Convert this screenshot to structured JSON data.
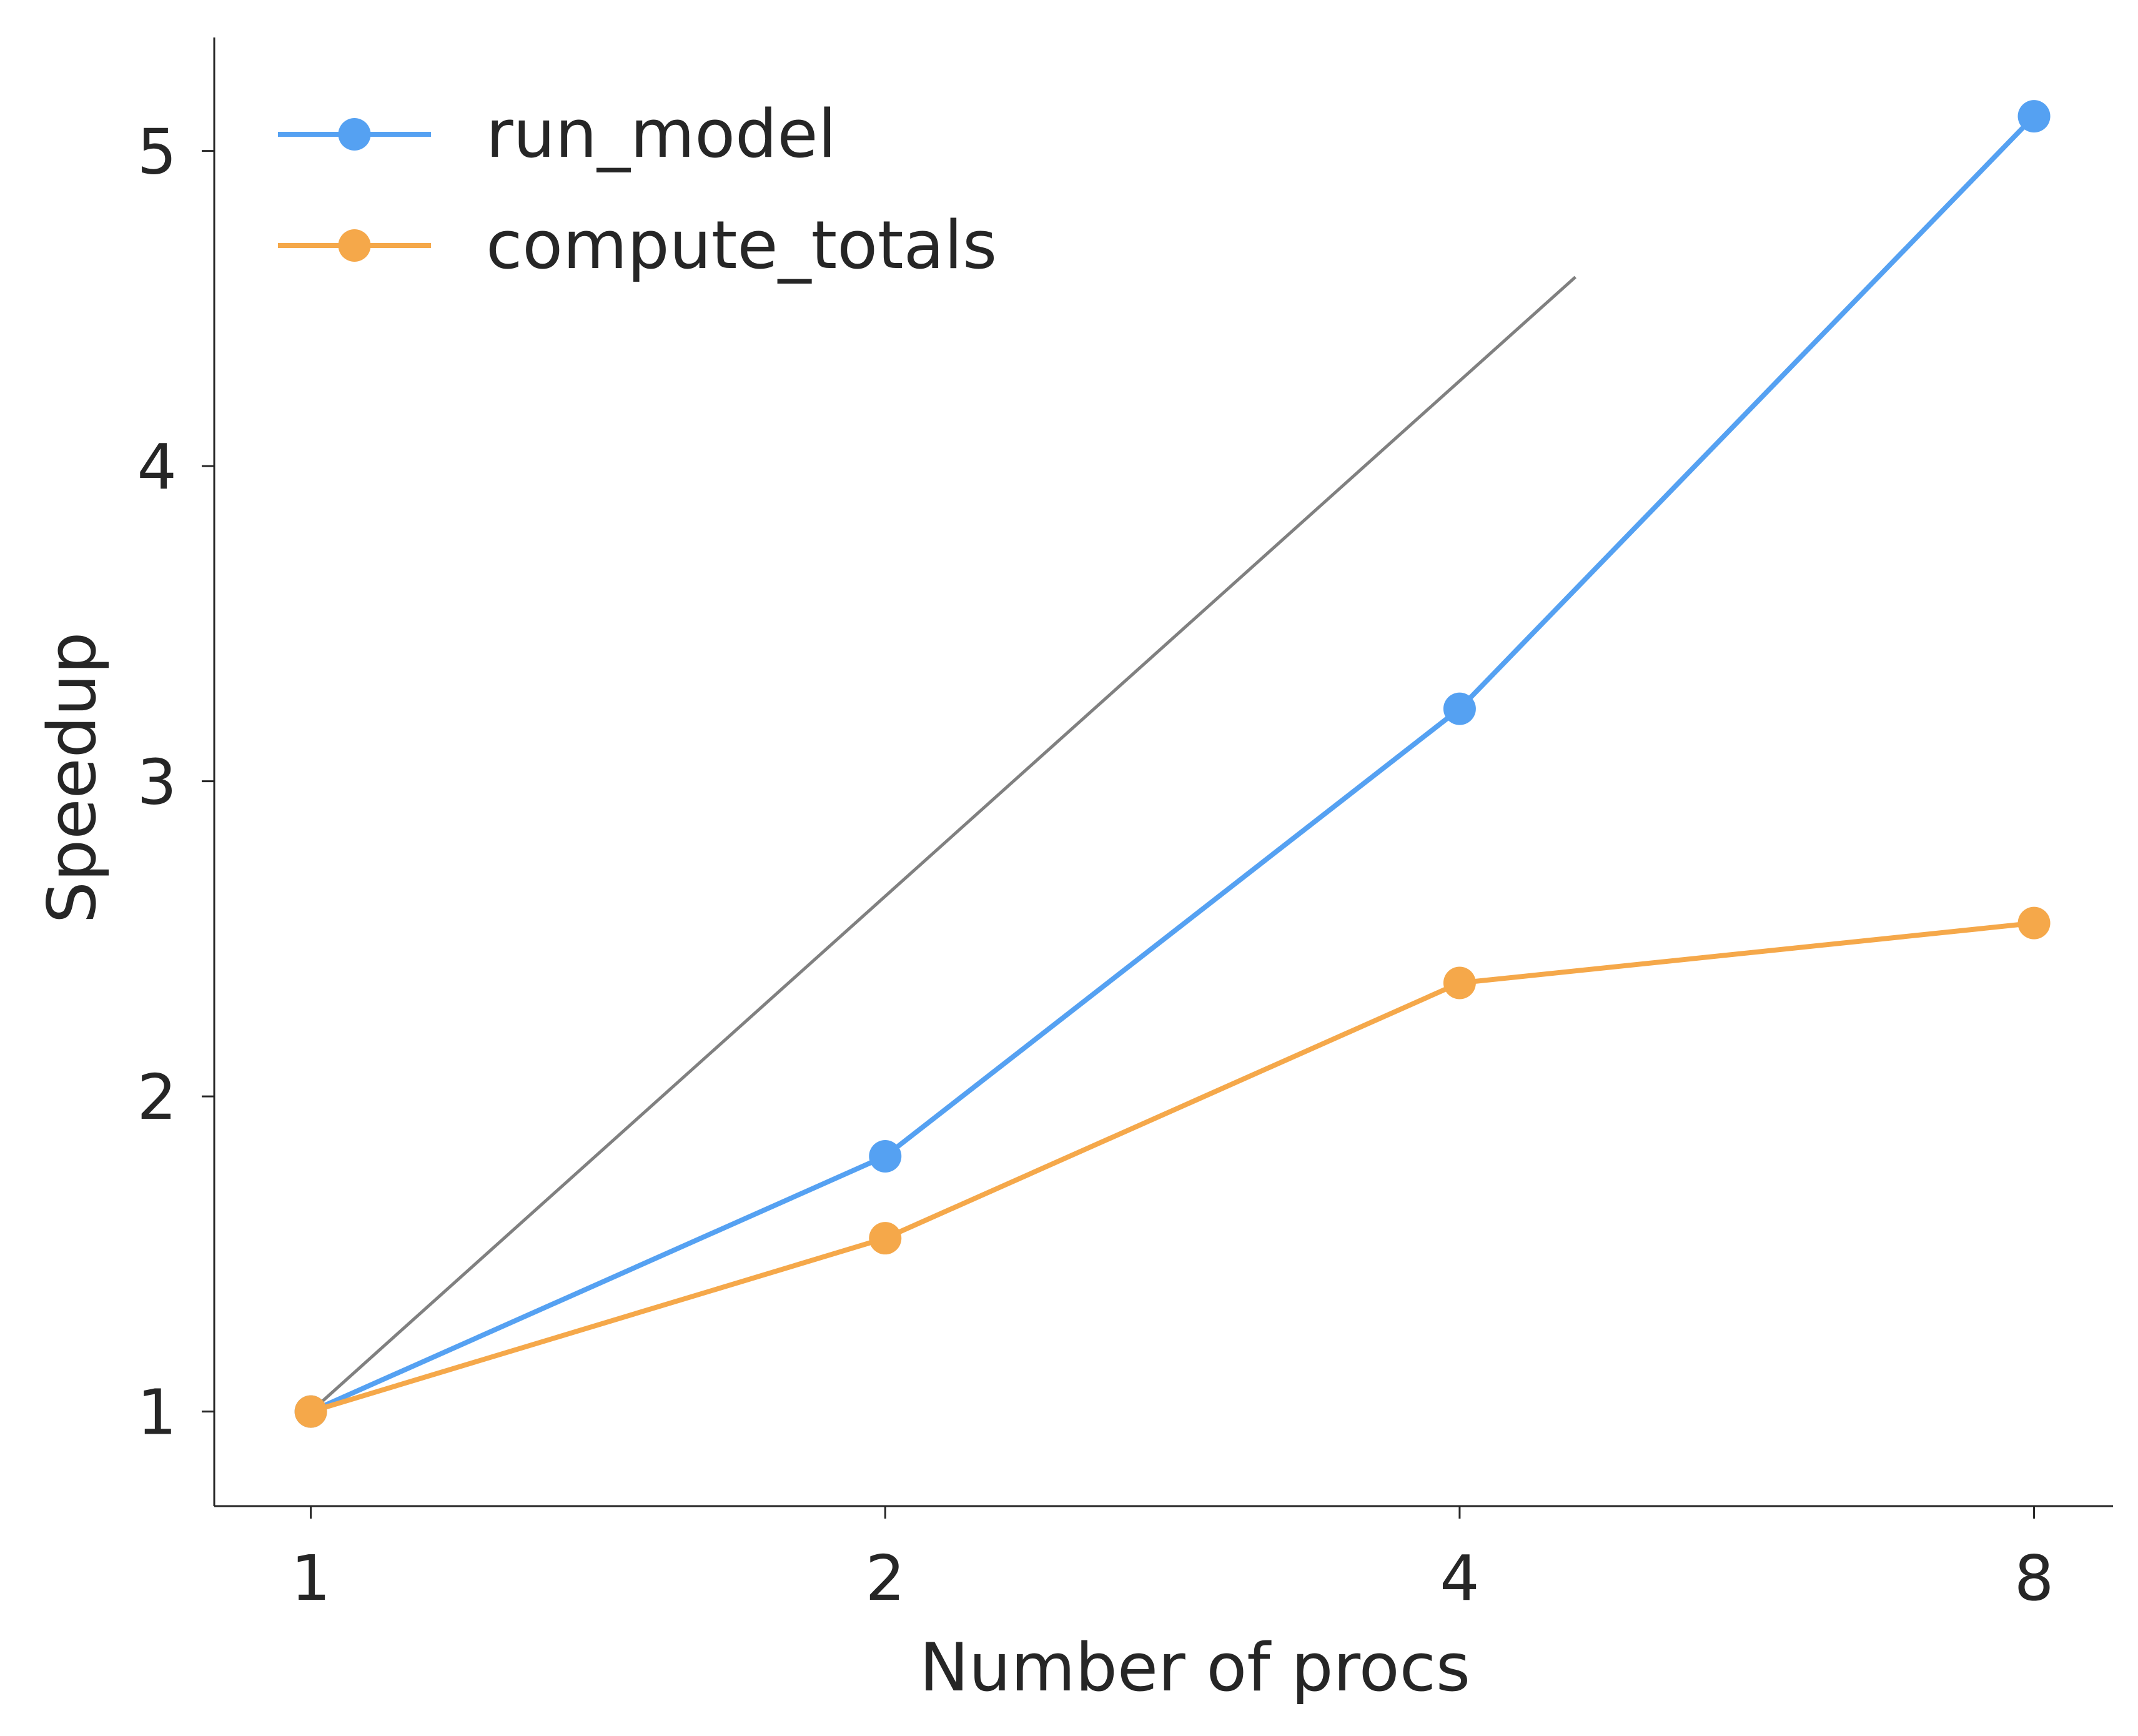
{
  "chart_data": {
    "type": "line",
    "xlabel": "Number of procs",
    "ylabel": "Speedup",
    "xscale": "log2",
    "x": [
      1,
      2,
      4,
      8
    ],
    "xticks": [
      "1",
      "2",
      "4",
      "8"
    ],
    "yticks": [
      "1",
      "2",
      "3",
      "4",
      "5"
    ],
    "xlim": [
      0.89,
      8.8
    ],
    "ylim": [
      0.7,
      5.36
    ],
    "grid": false,
    "legend_position": "top-left",
    "reference_line": {
      "x": [
        1,
        4.6
      ],
      "y": [
        1,
        4.6
      ],
      "color": "#808080"
    },
    "series": [
      {
        "name": "run_model",
        "color": "#55a1f2",
        "values": [
          1.0,
          1.81,
          3.23,
          5.11
        ]
      },
      {
        "name": "compute_totals",
        "color": "#f5a84a",
        "values": [
          1.0,
          1.55,
          2.36,
          2.55
        ]
      }
    ]
  }
}
